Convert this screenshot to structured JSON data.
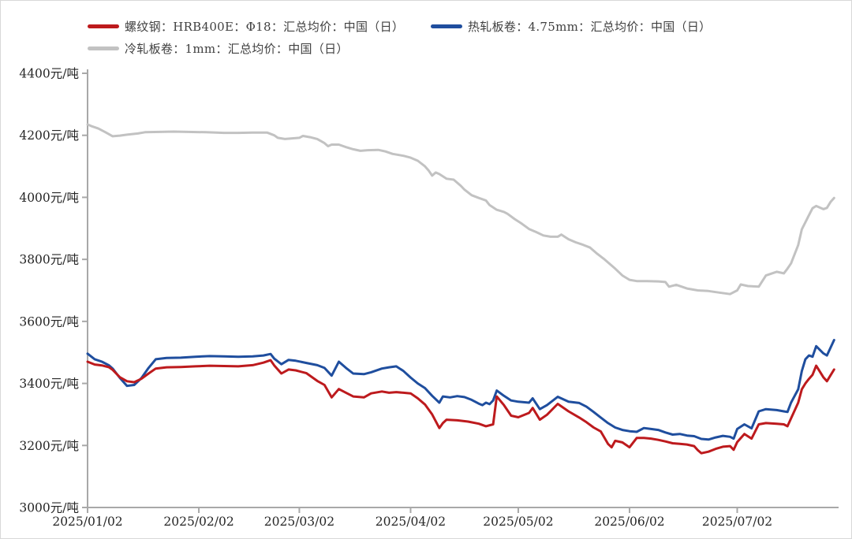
{
  "chart_data": {
    "type": "line",
    "title": "",
    "unit": "元/吨",
    "grid": false,
    "legend_position": "top-left",
    "ylim": [
      3000,
      4400
    ],
    "y_tick_step": 200,
    "y_tick_labels": [
      "3000元/吨",
      "3200元/吨",
      "3400元/吨",
      "3600元/吨",
      "3800元/吨",
      "4000元/吨",
      "4200元/吨",
      "4400元/吨"
    ],
    "x_tick_labels": [
      "2025/01/02",
      "2025/02/02",
      "2025/03/02",
      "2025/04/02",
      "2025/05/02",
      "2025/06/02",
      "2025/07/02"
    ],
    "x_tick_days": [
      0,
      31,
      59,
      90,
      120,
      151,
      181
    ],
    "x_range_days": [
      0,
      208
    ],
    "series": [
      {
        "name": "螺纹钢：HRB400E：Φ18：汇总均价：中国（日）",
        "color": "#bd1a1d",
        "points": [
          [
            0,
            3470
          ],
          [
            2,
            3461
          ],
          [
            4,
            3458
          ],
          [
            6,
            3452
          ],
          [
            7,
            3444
          ],
          [
            9,
            3420
          ],
          [
            11,
            3407
          ],
          [
            13,
            3404
          ],
          [
            15,
            3415
          ],
          [
            17,
            3432
          ],
          [
            19,
            3448
          ],
          [
            22,
            3452
          ],
          [
            26,
            3453
          ],
          [
            30,
            3455
          ],
          [
            34,
            3457
          ],
          [
            38,
            3456
          ],
          [
            42,
            3455
          ],
          [
            46,
            3459
          ],
          [
            49,
            3467
          ],
          [
            51,
            3475
          ],
          [
            52,
            3458
          ],
          [
            54,
            3432
          ],
          [
            56,
            3445
          ],
          [
            58,
            3442
          ],
          [
            61,
            3433
          ],
          [
            64,
            3408
          ],
          [
            66,
            3395
          ],
          [
            68,
            3355
          ],
          [
            70,
            3382
          ],
          [
            72,
            3370
          ],
          [
            74,
            3358
          ],
          [
            77,
            3355
          ],
          [
            79,
            3368
          ],
          [
            82,
            3374
          ],
          [
            84,
            3370
          ],
          [
            86,
            3372
          ],
          [
            88,
            3370
          ],
          [
            90,
            3368
          ],
          [
            92,
            3352
          ],
          [
            94,
            3332
          ],
          [
            96,
            3300
          ],
          [
            98,
            3256
          ],
          [
            99,
            3272
          ],
          [
            100,
            3283
          ],
          [
            103,
            3281
          ],
          [
            106,
            3277
          ],
          [
            109,
            3270
          ],
          [
            111,
            3262
          ],
          [
            113,
            3268
          ],
          [
            114,
            3358
          ],
          [
            116,
            3330
          ],
          [
            118,
            3296
          ],
          [
            120,
            3291
          ],
          [
            123,
            3305
          ],
          [
            124,
            3321
          ],
          [
            126,
            3283
          ],
          [
            128,
            3299
          ],
          [
            131,
            3334
          ],
          [
            134,
            3310
          ],
          [
            137,
            3290
          ],
          [
            139,
            3275
          ],
          [
            141,
            3258
          ],
          [
            143,
            3245
          ],
          [
            145,
            3205
          ],
          [
            146,
            3194
          ],
          [
            147,
            3215
          ],
          [
            149,
            3210
          ],
          [
            151,
            3194
          ],
          [
            153,
            3224
          ],
          [
            155,
            3224
          ],
          [
            157,
            3222
          ],
          [
            159,
            3218
          ],
          [
            161,
            3213
          ],
          [
            163,
            3207
          ],
          [
            165,
            3205
          ],
          [
            167,
            3203
          ],
          [
            169,
            3198
          ],
          [
            170,
            3185
          ],
          [
            171,
            3175
          ],
          [
            173,
            3180
          ],
          [
            175,
            3189
          ],
          [
            177,
            3196
          ],
          [
            179,
            3198
          ],
          [
            180,
            3186
          ],
          [
            181,
            3211
          ],
          [
            183,
            3237
          ],
          [
            185,
            3222
          ],
          [
            187,
            3268
          ],
          [
            189,
            3272
          ],
          [
            192,
            3270
          ],
          [
            194,
            3268
          ],
          [
            195,
            3262
          ],
          [
            196,
            3287
          ],
          [
            198,
            3338
          ],
          [
            199,
            3381
          ],
          [
            200,
            3400
          ],
          [
            201,
            3415
          ],
          [
            202,
            3428
          ],
          [
            203,
            3457
          ],
          [
            205,
            3420
          ],
          [
            206,
            3407
          ],
          [
            208,
            3445
          ]
        ]
      },
      {
        "name": "热轧板卷：4.75mm：汇总均价：中国（日）",
        "color": "#1f4e9e",
        "points": [
          [
            0,
            3496
          ],
          [
            2,
            3478
          ],
          [
            4,
            3470
          ],
          [
            6,
            3458
          ],
          [
            7,
            3448
          ],
          [
            9,
            3418
          ],
          [
            11,
            3392
          ],
          [
            13,
            3395
          ],
          [
            15,
            3417
          ],
          [
            17,
            3450
          ],
          [
            19,
            3478
          ],
          [
            22,
            3482
          ],
          [
            26,
            3483
          ],
          [
            30,
            3486
          ],
          [
            34,
            3488
          ],
          [
            38,
            3487
          ],
          [
            42,
            3486
          ],
          [
            46,
            3487
          ],
          [
            49,
            3490
          ],
          [
            51,
            3495
          ],
          [
            52,
            3480
          ],
          [
            54,
            3462
          ],
          [
            56,
            3476
          ],
          [
            58,
            3473
          ],
          [
            61,
            3466
          ],
          [
            64,
            3459
          ],
          [
            66,
            3450
          ],
          [
            68,
            3425
          ],
          [
            70,
            3470
          ],
          [
            72,
            3450
          ],
          [
            74,
            3432
          ],
          [
            77,
            3430
          ],
          [
            79,
            3436
          ],
          [
            82,
            3448
          ],
          [
            84,
            3452
          ],
          [
            86,
            3455
          ],
          [
            88,
            3440
          ],
          [
            90,
            3419
          ],
          [
            92,
            3400
          ],
          [
            94,
            3385
          ],
          [
            96,
            3360
          ],
          [
            98,
            3338
          ],
          [
            99,
            3358
          ],
          [
            101,
            3355
          ],
          [
            103,
            3359
          ],
          [
            105,
            3356
          ],
          [
            107,
            3347
          ],
          [
            109,
            3335
          ],
          [
            110,
            3330
          ],
          [
            111,
            3338
          ],
          [
            112,
            3333
          ],
          [
            113,
            3345
          ],
          [
            114,
            3377
          ],
          [
            116,
            3360
          ],
          [
            118,
            3345
          ],
          [
            120,
            3341
          ],
          [
            123,
            3338
          ],
          [
            124,
            3352
          ],
          [
            126,
            3317
          ],
          [
            128,
            3330
          ],
          [
            131,
            3357
          ],
          [
            134,
            3341
          ],
          [
            137,
            3337
          ],
          [
            139,
            3325
          ],
          [
            141,
            3308
          ],
          [
            143,
            3290
          ],
          [
            145,
            3272
          ],
          [
            147,
            3258
          ],
          [
            149,
            3250
          ],
          [
            151,
            3246
          ],
          [
            153,
            3244
          ],
          [
            155,
            3256
          ],
          [
            157,
            3253
          ],
          [
            159,
            3250
          ],
          [
            161,
            3242
          ],
          [
            163,
            3235
          ],
          [
            165,
            3237
          ],
          [
            167,
            3232
          ],
          [
            169,
            3230
          ],
          [
            171,
            3221
          ],
          [
            173,
            3219
          ],
          [
            175,
            3226
          ],
          [
            177,
            3231
          ],
          [
            179,
            3228
          ],
          [
            180,
            3222
          ],
          [
            181,
            3253
          ],
          [
            183,
            3268
          ],
          [
            185,
            3255
          ],
          [
            187,
            3310
          ],
          [
            189,
            3317
          ],
          [
            192,
            3314
          ],
          [
            194,
            3310
          ],
          [
            195,
            3308
          ],
          [
            196,
            3338
          ],
          [
            198,
            3381
          ],
          [
            199,
            3440
          ],
          [
            200,
            3478
          ],
          [
            201,
            3490
          ],
          [
            202,
            3486
          ],
          [
            203,
            3520
          ],
          [
            205,
            3497
          ],
          [
            206,
            3490
          ],
          [
            208,
            3540
          ]
        ]
      },
      {
        "name": "冷轧板卷：1mm：汇总均价：中国（日）",
        "color": "#c2c2c2",
        "points": [
          [
            0,
            4235
          ],
          [
            1,
            4230
          ],
          [
            3,
            4222
          ],
          [
            5,
            4210
          ],
          [
            7,
            4197
          ],
          [
            9,
            4199
          ],
          [
            11,
            4202
          ],
          [
            14,
            4206
          ],
          [
            16,
            4210
          ],
          [
            20,
            4211
          ],
          [
            24,
            4212
          ],
          [
            28,
            4211
          ],
          [
            33,
            4210
          ],
          [
            38,
            4208
          ],
          [
            42,
            4208
          ],
          [
            46,
            4209
          ],
          [
            50,
            4209
          ],
          [
            52,
            4200
          ],
          [
            53,
            4192
          ],
          [
            55,
            4188
          ],
          [
            57,
            4190
          ],
          [
            59,
            4192
          ],
          [
            60,
            4198
          ],
          [
            62,
            4194
          ],
          [
            64,
            4188
          ],
          [
            66,
            4175
          ],
          [
            67,
            4165
          ],
          [
            68,
            4170
          ],
          [
            70,
            4170
          ],
          [
            72,
            4162
          ],
          [
            74,
            4155
          ],
          [
            76,
            4150
          ],
          [
            78,
            4152
          ],
          [
            81,
            4153
          ],
          [
            83,
            4148
          ],
          [
            85,
            4140
          ],
          [
            88,
            4134
          ],
          [
            90,
            4128
          ],
          [
            92,
            4118
          ],
          [
            94,
            4100
          ],
          [
            95,
            4087
          ],
          [
            96,
            4070
          ],
          [
            97,
            4080
          ],
          [
            98,
            4075
          ],
          [
            100,
            4060
          ],
          [
            102,
            4057
          ],
          [
            104,
            4037
          ],
          [
            105,
            4025
          ],
          [
            107,
            4007
          ],
          [
            109,
            3998
          ],
          [
            111,
            3990
          ],
          [
            112,
            3975
          ],
          [
            114,
            3960
          ],
          [
            116,
            3953
          ],
          [
            117,
            3947
          ],
          [
            119,
            3930
          ],
          [
            121,
            3915
          ],
          [
            123,
            3898
          ],
          [
            125,
            3888
          ],
          [
            127,
            3877
          ],
          [
            129,
            3873
          ],
          [
            131,
            3873
          ],
          [
            132,
            3880
          ],
          [
            134,
            3865
          ],
          [
            136,
            3855
          ],
          [
            138,
            3847
          ],
          [
            140,
            3838
          ],
          [
            142,
            3818
          ],
          [
            144,
            3800
          ],
          [
            146,
            3780
          ],
          [
            147,
            3770
          ],
          [
            149,
            3748
          ],
          [
            151,
            3734
          ],
          [
            153,
            3730
          ],
          [
            156,
            3730
          ],
          [
            159,
            3729
          ],
          [
            161,
            3727
          ],
          [
            162,
            3712
          ],
          [
            164,
            3718
          ],
          [
            167,
            3706
          ],
          [
            170,
            3700
          ],
          [
            173,
            3698
          ],
          [
            176,
            3693
          ],
          [
            179,
            3688
          ],
          [
            181,
            3700
          ],
          [
            182,
            3719
          ],
          [
            184,
            3714
          ],
          [
            187,
            3712
          ],
          [
            189,
            3748
          ],
          [
            192,
            3760
          ],
          [
            194,
            3755
          ],
          [
            195,
            3770
          ],
          [
            196,
            3787
          ],
          [
            198,
            3846
          ],
          [
            199,
            3897
          ],
          [
            201,
            3943
          ],
          [
            202,
            3965
          ],
          [
            203,
            3972
          ],
          [
            205,
            3962
          ],
          [
            206,
            3966
          ],
          [
            207,
            3985
          ],
          [
            208,
            3998
          ]
        ]
      }
    ]
  }
}
